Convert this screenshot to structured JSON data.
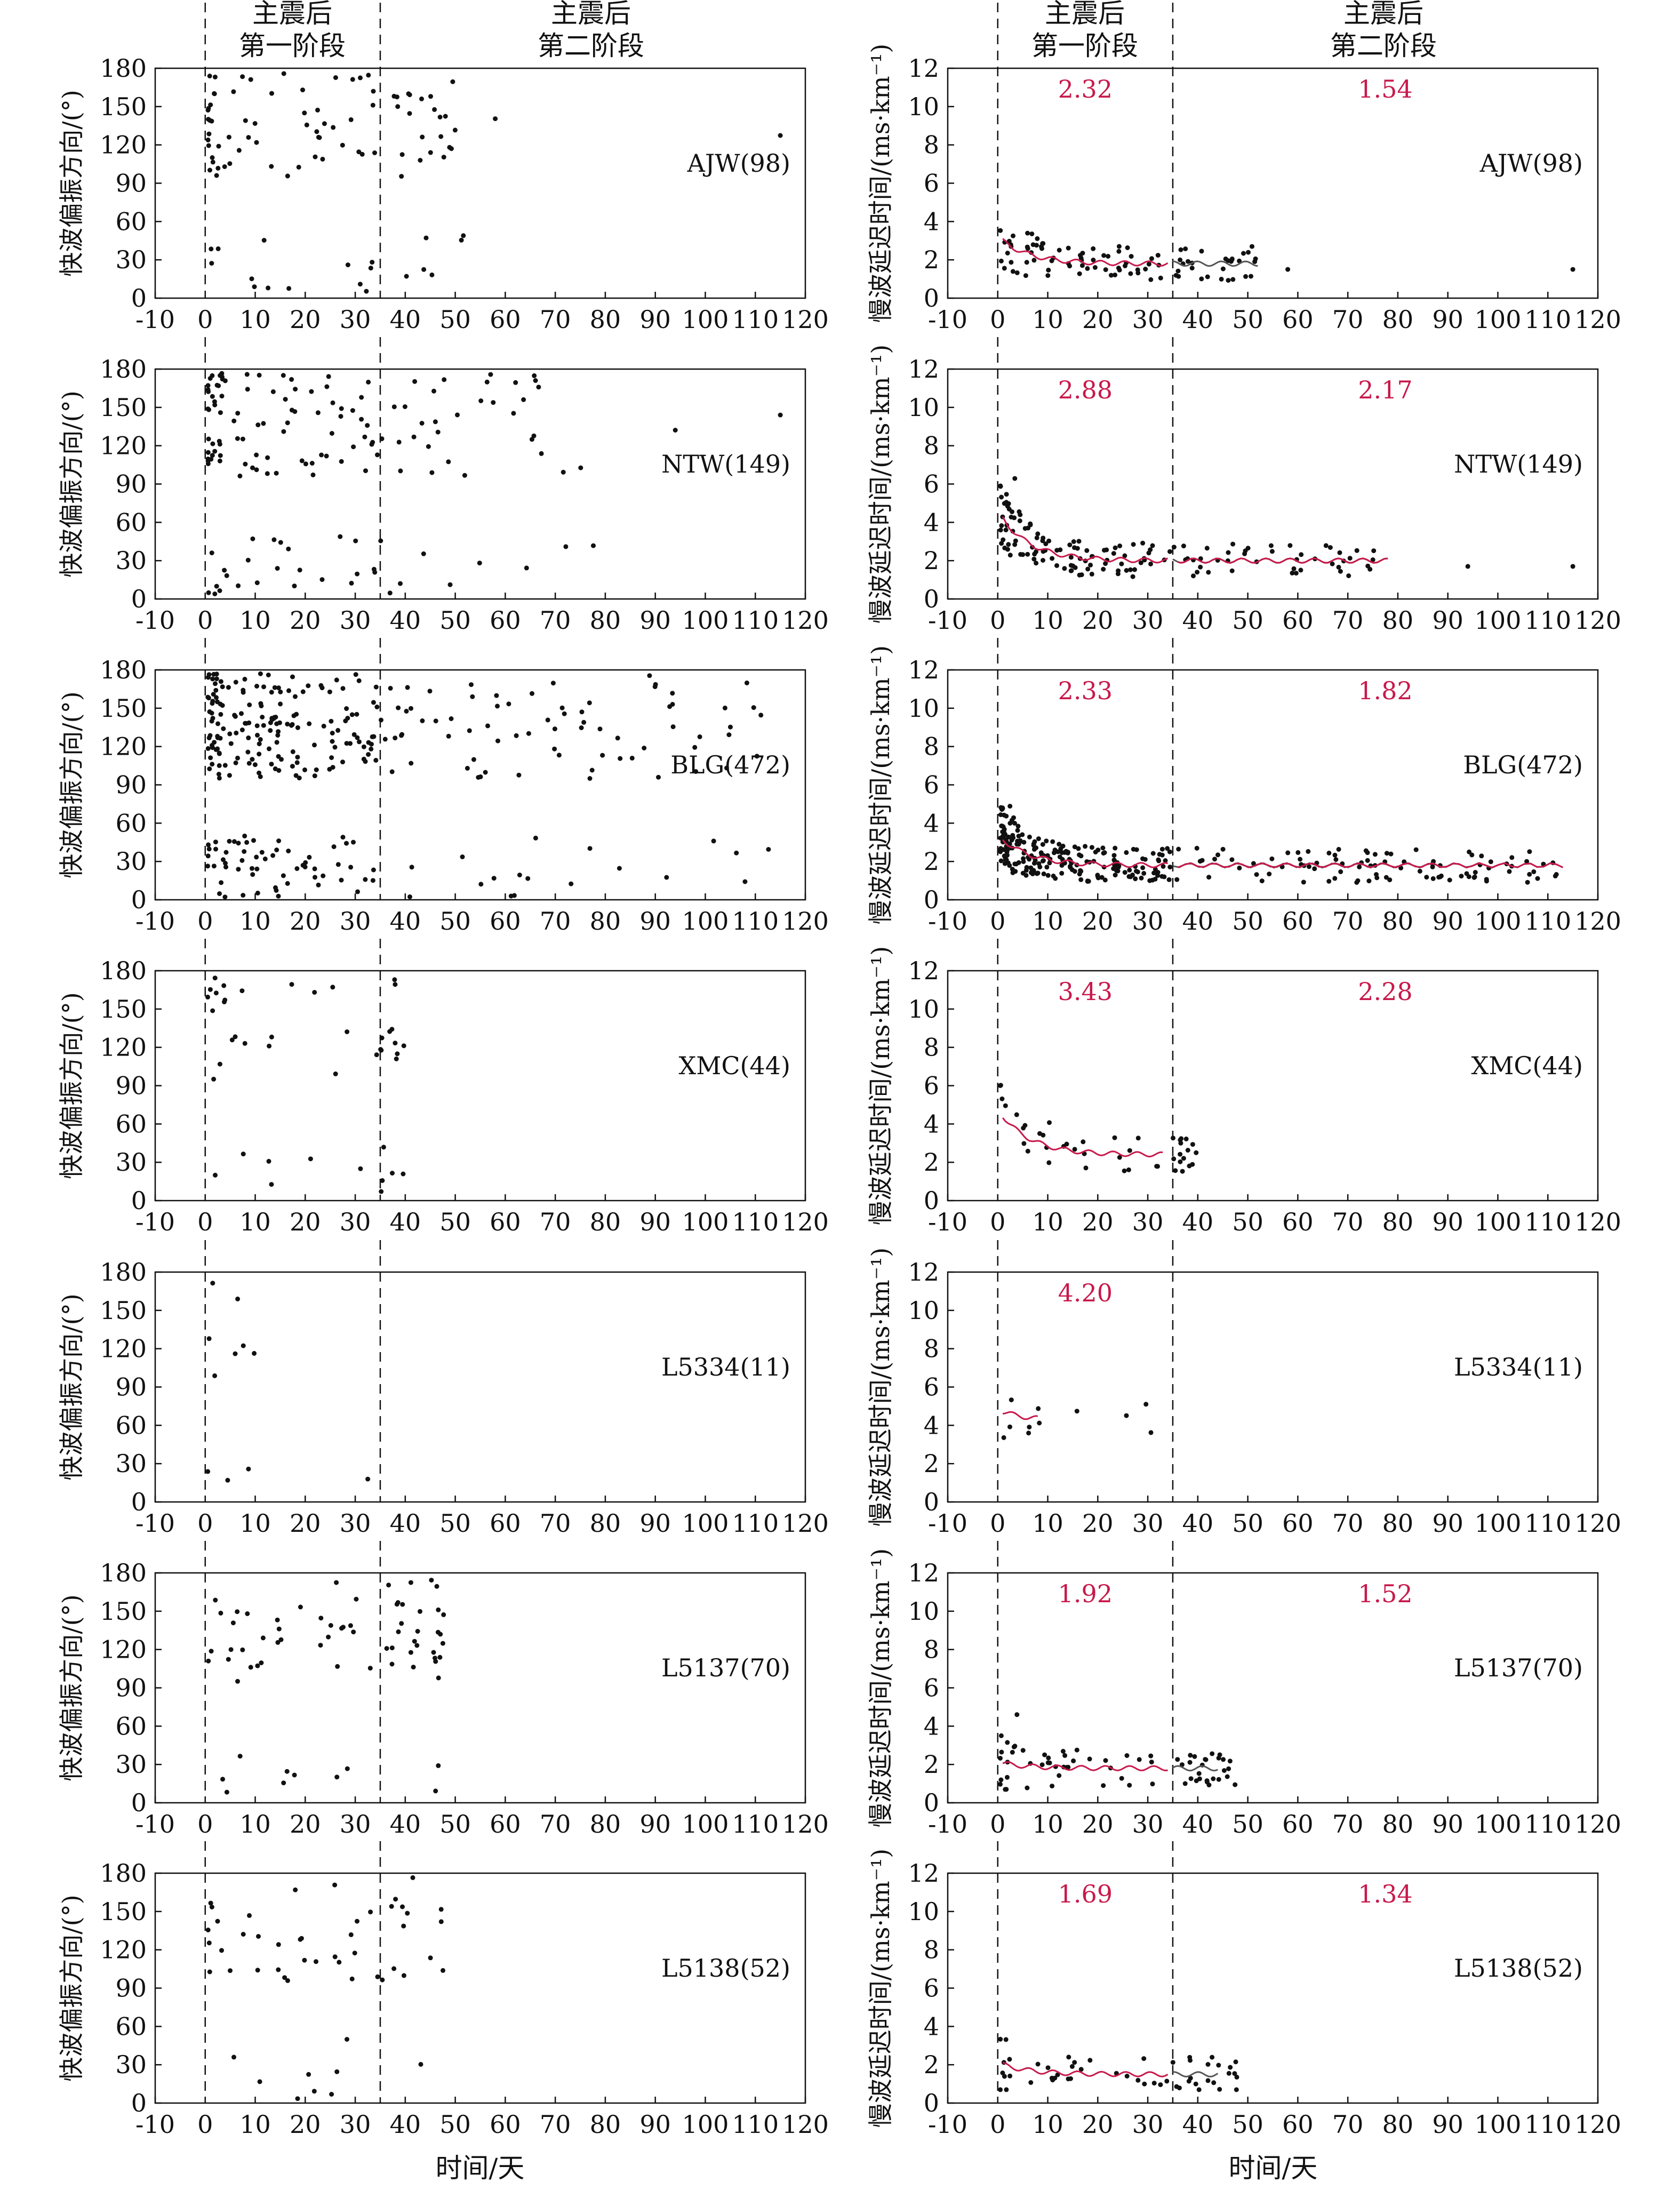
{
  "labels": {
    "phase1_line1": "主震后",
    "phase1_line2": "第一阶段",
    "phase2_line1": "主震后",
    "phase2_line2": "第二阶段",
    "x_label": "时间/天",
    "left_y_label": "快波偏振方向/(°)",
    "right_y_label": "慢波延迟时间/(ms·km⁻¹)"
  },
  "chart_data": {
    "type": "scatter",
    "x_range": [
      -10,
      120
    ],
    "x_ticks": [
      -10,
      0,
      10,
      20,
      30,
      40,
      50,
      60,
      70,
      80,
      90,
      100,
      110,
      120
    ],
    "phase_boundaries": [
      0,
      35
    ],
    "left_panels": {
      "ylabel": "快波偏振方向/(°)",
      "ylim": [
        0,
        180
      ],
      "y_ticks": [
        0,
        30,
        60,
        90,
        120,
        150,
        180
      ]
    },
    "right_panels": {
      "ylabel": "慢波延迟时间/(ms·km⁻¹)",
      "ylim": [
        0,
        12
      ],
      "y_ticks": [
        0,
        2,
        4,
        6,
        8,
        10,
        12
      ]
    },
    "stations": [
      {
        "name": "AJW(98)",
        "phase1_mean": "2.32",
        "phase2_mean": "1.54",
        "has_phase2": true,
        "count": 98,
        "end_day": 52,
        "p2_end": 52,
        "outliers": [
          58,
          115
        ],
        "base": 1.8,
        "decay_amp": 1.4
      },
      {
        "name": "NTW(149)",
        "phase1_mean": "2.88",
        "phase2_mean": "2.17",
        "has_phase2": true,
        "count": 149,
        "end_day": 78,
        "p2_end": 78,
        "outliers": [
          94,
          115
        ],
        "base": 2.0,
        "decay_amp": 2.6
      },
      {
        "name": "BLG(472)",
        "phase1_mean": "2.33",
        "phase2_mean": "1.82",
        "has_phase2": true,
        "count": 472,
        "end_day": 113,
        "p2_end": 113,
        "outliers": [],
        "base": 1.8,
        "decay_amp": 1.6
      },
      {
        "name": "XMC(44)",
        "phase1_mean": "3.43",
        "phase2_mean": "2.28",
        "has_phase2": true,
        "count": 44,
        "end_day": 33,
        "p2_end": 40,
        "outliers": [],
        "base": 2.4,
        "decay_amp": 2.4
      },
      {
        "name": "L5334(11)",
        "phase1_mean": "4.20",
        "phase2_mean": "",
        "has_phase2": false,
        "count": 11,
        "end_day": 8,
        "p2_end": 8,
        "outliers": [],
        "base": 4.2,
        "decay_amp": 0.6
      },
      {
        "name": "L5137(70)",
        "phase1_mean": "1.92",
        "phase2_mean": "1.52",
        "has_phase2": true,
        "count": 70,
        "end_day": 44,
        "p2_end": 48,
        "outliers": [],
        "base": 1.8,
        "decay_amp": 0.3
      },
      {
        "name": "L5138(52)",
        "phase1_mean": "1.69",
        "phase2_mean": "1.34",
        "has_phase2": true,
        "count": 52,
        "end_day": 44,
        "p2_end": 48,
        "outliers": [],
        "base": 1.5,
        "decay_amp": 0.6
      }
    ]
  }
}
